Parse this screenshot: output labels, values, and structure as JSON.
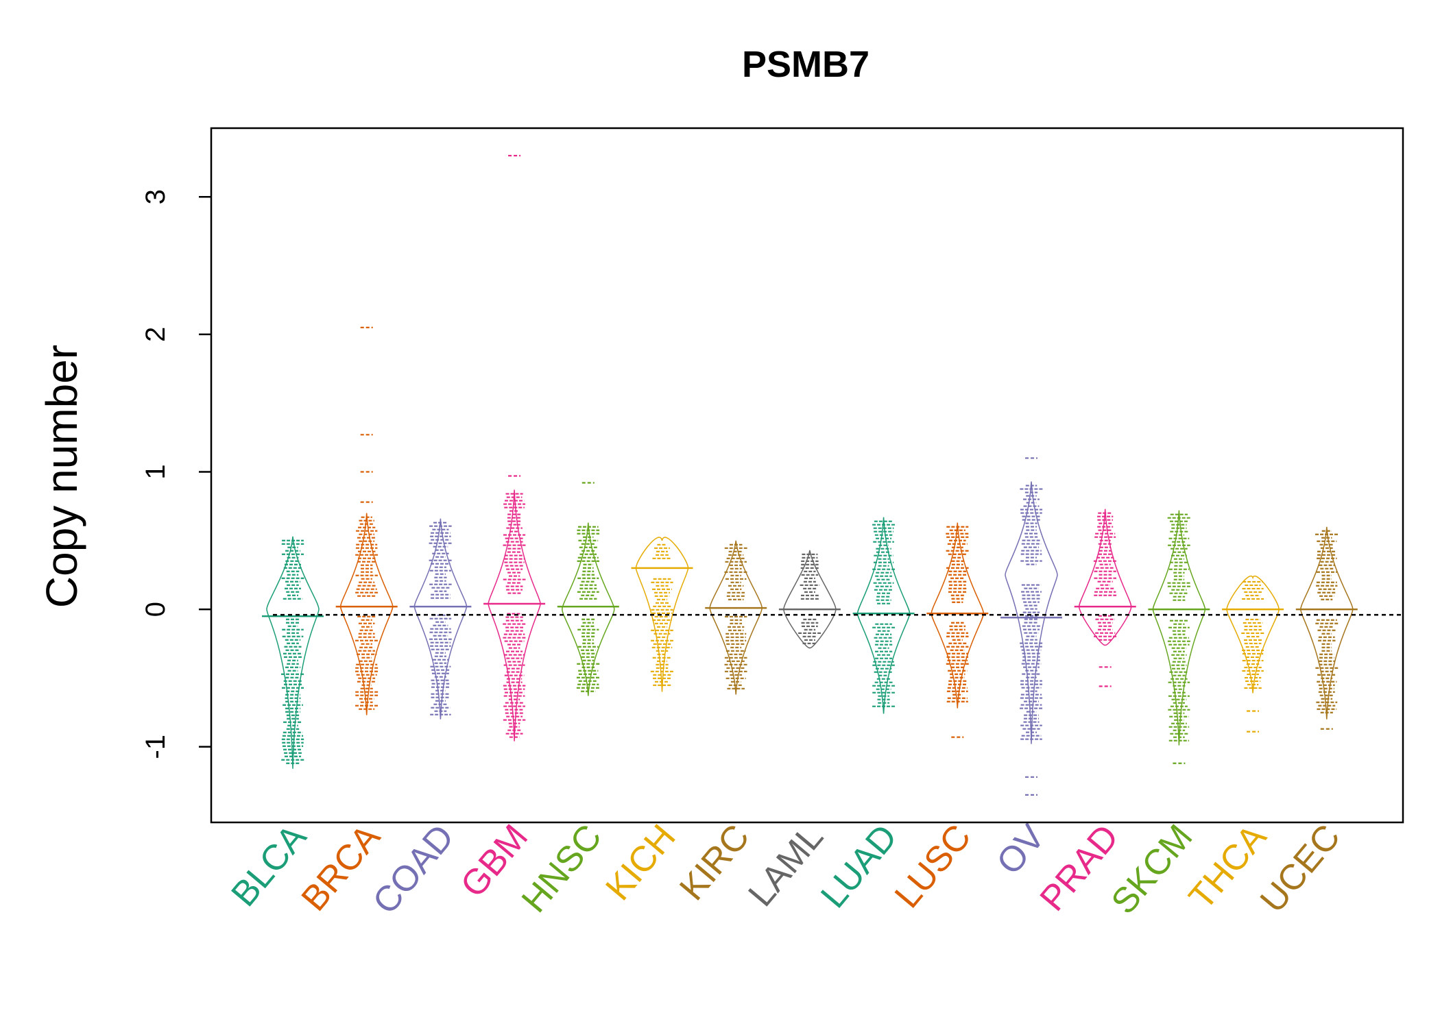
{
  "chart_data": {
    "type": "beanplot",
    "title": "PSMB7",
    "xlabel": "",
    "ylabel": "Copy number",
    "ylim": [
      -1.55,
      3.5
    ],
    "yticks": [
      -1,
      0,
      1,
      2,
      3
    ],
    "yticklabels": [
      "-1",
      "0",
      "1",
      "2",
      "3"
    ],
    "overall_median": -0.04,
    "categories": [
      "BLCA",
      "BRCA",
      "COAD",
      "GBM",
      "HNSC",
      "KICH",
      "KIRC",
      "LAML",
      "LUAD",
      "LUSC",
      "OV",
      "PRAD",
      "SKCM",
      "THCA",
      "UCEC"
    ],
    "colors": [
      "#1b9e77",
      "#d95f02",
      "#7570b3",
      "#e7298a",
      "#66a61e",
      "#e6ab02",
      "#a6761d",
      "#666666",
      "#1b9e77",
      "#d95f02",
      "#7570b3",
      "#e7298a",
      "#66a61e",
      "#e6ab02",
      "#a6761d"
    ],
    "series": [
      {
        "name": "BLCA",
        "min": -1.13,
        "max": 0.5,
        "median": -0.05,
        "widest": 0.0,
        "outliers": []
      },
      {
        "name": "BRCA",
        "min": -0.74,
        "max": 0.67,
        "median": 0.02,
        "widest": 0.02,
        "outliers": [
          0.78,
          1.0,
          1.27,
          2.05
        ]
      },
      {
        "name": "COAD",
        "min": -0.77,
        "max": 0.63,
        "median": 0.02,
        "widest": 0.02,
        "outliers": []
      },
      {
        "name": "GBM",
        "min": -0.93,
        "max": 0.84,
        "median": 0.04,
        "widest": 0.04,
        "outliers": [
          0.97,
          3.3
        ]
      },
      {
        "name": "HNSC",
        "min": -0.6,
        "max": 0.6,
        "median": 0.02,
        "widest": 0.0,
        "outliers": [
          0.92
        ]
      },
      {
        "name": "KICH",
        "min": -0.57,
        "max": 0.47,
        "median": 0.3,
        "widest": 0.3,
        "outliers": []
      },
      {
        "name": "KIRC",
        "min": -0.59,
        "max": 0.47,
        "median": 0.01,
        "widest": 0.01,
        "outliers": []
      },
      {
        "name": "LAML",
        "min": -0.25,
        "max": 0.4,
        "median": 0.0,
        "widest": 0.0,
        "outliers": []
      },
      {
        "name": "LUAD",
        "min": -0.73,
        "max": 0.64,
        "median": -0.03,
        "widest": -0.03,
        "outliers": []
      },
      {
        "name": "LUSC",
        "min": -0.69,
        "max": 0.6,
        "median": -0.03,
        "widest": -0.03,
        "outliers": [
          -0.93
        ]
      },
      {
        "name": "OV",
        "min": -0.95,
        "max": 0.9,
        "median": -0.06,
        "widest": 0.25,
        "outliers": [
          1.1,
          -1.22,
          -1.35
        ]
      },
      {
        "name": "PRAD",
        "min": -0.23,
        "max": 0.7,
        "median": 0.02,
        "widest": 0.02,
        "outliers": [
          -0.42,
          -0.56
        ]
      },
      {
        "name": "SKCM",
        "min": -0.96,
        "max": 0.69,
        "median": 0.0,
        "widest": 0.0,
        "outliers": [
          -1.12
        ]
      },
      {
        "name": "THCA",
        "min": -0.58,
        "max": 0.2,
        "median": 0.0,
        "widest": 0.0,
        "outliers": [
          -0.74,
          -0.89
        ]
      },
      {
        "name": "UCEC",
        "min": -0.77,
        "max": 0.57,
        "median": 0.0,
        "widest": 0.0,
        "outliers": [
          -0.87
        ]
      }
    ]
  }
}
